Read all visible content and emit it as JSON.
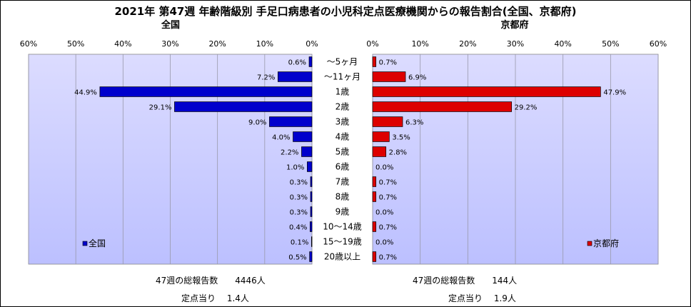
{
  "chart_data": {
    "type": "bar",
    "orientation": "horizontal-butterfly",
    "title": "2021年 第47週 年齢階級別 手足口病患者の小児科定点医療機関からの報告割合(全国、京都府)",
    "categories": [
      "～5ヶ月",
      "～11ヶ月",
      "1歳",
      "2歳",
      "3歳",
      "4歳",
      "5歳",
      "6歳",
      "7歳",
      "8歳",
      "9歳",
      "10～14歳",
      "15～19歳",
      "20歳以上"
    ],
    "x_ticks": [
      "60%",
      "50%",
      "40%",
      "30%",
      "20%",
      "10%",
      "0%"
    ],
    "x_ticks_right": [
      "0%",
      "10%",
      "20%",
      "30%",
      "40%",
      "50%",
      "60%"
    ],
    "xlim": [
      0,
      60
    ],
    "grid": true,
    "series": [
      {
        "name": "全国",
        "subtitle": "全国",
        "color": "#0000cc",
        "values": [
          0.6,
          7.2,
          44.9,
          29.1,
          9.0,
          4.0,
          2.2,
          1.0,
          0.3,
          0.3,
          0.3,
          0.4,
          0.1,
          0.5
        ],
        "labels": [
          "0.6%",
          "7.2%",
          "44.9%",
          "29.1%",
          "9.0%",
          "4.0%",
          "2.2%",
          "1.0%",
          "0.3%",
          "0.3%",
          "0.3%",
          "0.4%",
          "0.1%",
          "0.5%"
        ],
        "legend": "全国"
      },
      {
        "name": "京都府",
        "subtitle": "京都府",
        "color": "#dd0000",
        "values": [
          0.7,
          6.9,
          47.9,
          29.2,
          6.3,
          3.5,
          2.8,
          0.0,
          0.7,
          0.7,
          0.0,
          0.7,
          0.0,
          0.7
        ],
        "labels": [
          "0.7%",
          "6.9%",
          "47.9%",
          "29.2%",
          "6.3%",
          "3.5%",
          "2.8%",
          "0.0%",
          "0.7%",
          "0.7%",
          "0.0%",
          "0.7%",
          "0.0%",
          "0.7%"
        ],
        "legend": "京都府"
      }
    ]
  },
  "footer": {
    "national_total": "47週の総報告数　　4446人",
    "national_per_site": "定点当り　 1.4人",
    "kyoto_total": "47週の総報告数　　144人",
    "kyoto_per_site": "定点当り　 1.9人"
  }
}
